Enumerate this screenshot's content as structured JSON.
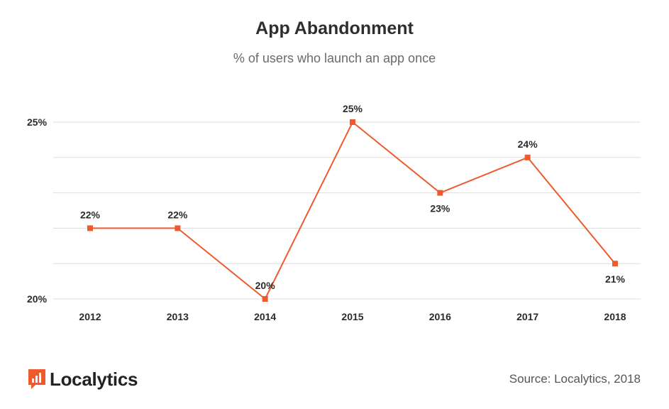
{
  "chart_data": {
    "type": "line",
    "title": "App Abandonment",
    "subtitle": "% of users who launch an app once",
    "categories": [
      "2012",
      "2013",
      "2014",
      "2015",
      "2016",
      "2017",
      "2018"
    ],
    "values": [
      22,
      22,
      20,
      25,
      23,
      24,
      21
    ],
    "data_labels": [
      "22%",
      "22%",
      "20%",
      "25%",
      "23%",
      "24%",
      "21%"
    ],
    "label_positions": [
      "above",
      "above",
      "above",
      "above",
      "below",
      "above",
      "below"
    ],
    "y_ticks": [
      20,
      25
    ],
    "y_tick_labels": [
      "20%",
      "25%"
    ],
    "ylim": [
      20,
      25
    ],
    "gridlines": [
      20,
      21,
      22,
      23,
      24,
      25
    ],
    "xlabel": "",
    "ylabel": "",
    "grid": true,
    "series_color": "#EE5A2C",
    "grid_color": "#DDDDDD"
  },
  "branding": {
    "logo_text": "Localytics",
    "logo_color": "#EE5A2C",
    "source": "Source: Localytics, 2018"
  }
}
